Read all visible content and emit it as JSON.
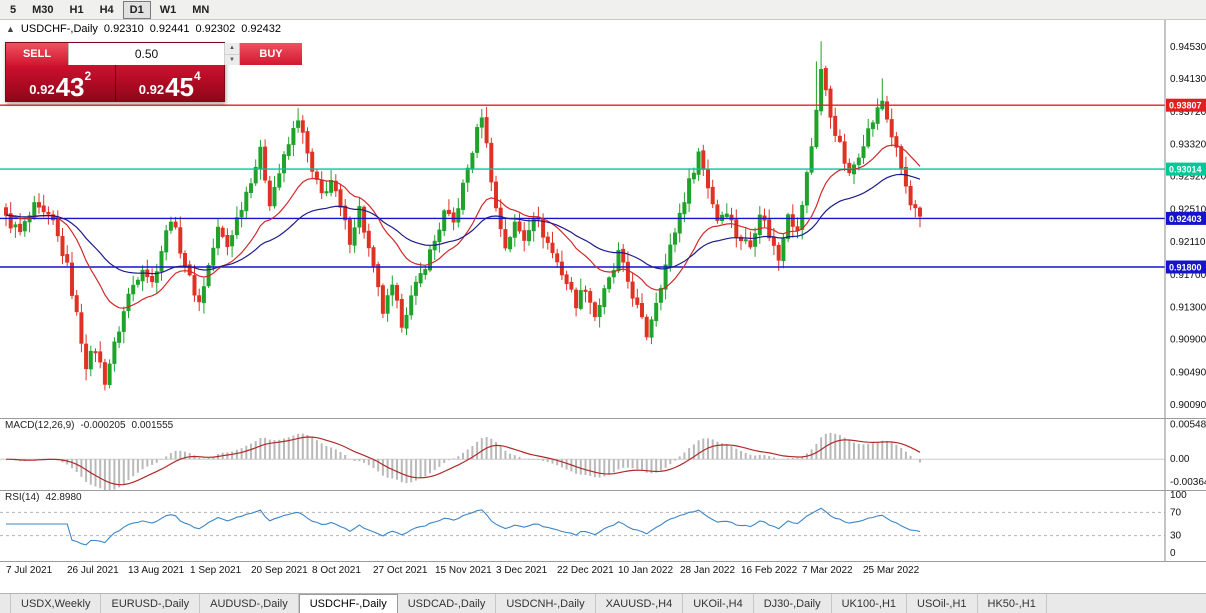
{
  "toolbar": {
    "timeframes": [
      "5",
      "M30",
      "H1",
      "H4",
      "D1",
      "W1",
      "MN"
    ],
    "active": "D1"
  },
  "chart_header": {
    "collapse_icon": "▲",
    "symbol": "USDCHF-,Daily",
    "open": "0.92310",
    "high": "0.92441",
    "low": "0.92302",
    "close": "0.92432"
  },
  "trade_panel": {
    "sell_label": "SELL",
    "buy_label": "BUY",
    "volume": "0.50",
    "volume_up_icon": "▲",
    "volume_down_icon": "▼",
    "sell_price_base": "0.92",
    "sell_price_pips": "43",
    "sell_price_point": "2",
    "buy_price_base": "0.92",
    "buy_price_pips": "45",
    "buy_price_point": "4"
  },
  "chart_data": {
    "type": "candlestick",
    "title": "USDCHF-,Daily",
    "candle_count": 195,
    "last_close": 0.92432,
    "price_range": [
      0.901,
      0.9474
    ],
    "up_color": "#1fa32b",
    "down_color": "#e03224",
    "ma_fast_color": "#d02a2a",
    "ma_slow_color": "#1c1c8c",
    "y_ticks": [
      0.9453,
      0.9413,
      0.9372,
      0.9332,
      0.9292,
      0.9251,
      0.9211,
      0.917,
      0.913,
      0.909,
      0.9049,
      0.9009
    ],
    "hlines": [
      {
        "price": 0.93807,
        "color": "#e02020",
        "label": "0.93807"
      },
      {
        "price": 0.93014,
        "color": "#00c896",
        "label": "0.93014"
      },
      {
        "price": 0.92403,
        "color": "#1414cc",
        "label": "0.92403"
      },
      {
        "price": 0.918,
        "color": "#1414cc",
        "label": "0.91800"
      }
    ],
    "x_labels": [
      {
        "i": 0,
        "label": "7 Jul 2021"
      },
      {
        "i": 13,
        "label": "26 Jul 2021"
      },
      {
        "i": 26,
        "label": "13 Aug 2021"
      },
      {
        "i": 39,
        "label": "1 Sep 2021"
      },
      {
        "i": 52,
        "label": "20 Sep 2021"
      },
      {
        "i": 65,
        "label": "8 Oct 2021"
      },
      {
        "i": 78,
        "label": "27 Oct 2021"
      },
      {
        "i": 91,
        "label": "15 Nov 2021"
      },
      {
        "i": 104,
        "label": "3 Dec 2021"
      },
      {
        "i": 117,
        "label": "22 Dec 2021"
      },
      {
        "i": 130,
        "label": "10 Jan 2022"
      },
      {
        "i": 143,
        "label": "28 Jan 2022"
      },
      {
        "i": 156,
        "label": "16 Feb 2022"
      },
      {
        "i": 169,
        "label": "7 Mar 2022"
      },
      {
        "i": 182,
        "label": "25 Mar 2022"
      }
    ],
    "close_waypoints": [
      [
        0,
        0.924
      ],
      [
        3,
        0.9222
      ],
      [
        6,
        0.9253
      ],
      [
        10,
        0.9235
      ],
      [
        13,
        0.918
      ],
      [
        17,
        0.906
      ],
      [
        19,
        0.9078
      ],
      [
        21,
        0.904
      ],
      [
        26,
        0.9145
      ],
      [
        29,
        0.9182
      ],
      [
        31,
        0.916
      ],
      [
        35,
        0.9242
      ],
      [
        39,
        0.9165
      ],
      [
        41,
        0.9136
      ],
      [
        45,
        0.9226
      ],
      [
        47,
        0.9206
      ],
      [
        52,
        0.929
      ],
      [
        54,
        0.9322
      ],
      [
        56,
        0.9262
      ],
      [
        62,
        0.9366
      ],
      [
        65,
        0.9296
      ],
      [
        67,
        0.927
      ],
      [
        69,
        0.9287
      ],
      [
        73,
        0.9215
      ],
      [
        75,
        0.9252
      ],
      [
        80,
        0.9125
      ],
      [
        82,
        0.9152
      ],
      [
        84,
        0.9112
      ],
      [
        91,
        0.9212
      ],
      [
        93,
        0.9246
      ],
      [
        95,
        0.9234
      ],
      [
        101,
        0.937
      ],
      [
        104,
        0.9252
      ],
      [
        106,
        0.9206
      ],
      [
        108,
        0.9232
      ],
      [
        110,
        0.9216
      ],
      [
        112,
        0.9246
      ],
      [
        117,
        0.9186
      ],
      [
        121,
        0.9136
      ],
      [
        123,
        0.9156
      ],
      [
        125,
        0.912
      ],
      [
        129,
        0.9176
      ],
      [
        130,
        0.9196
      ],
      [
        136,
        0.9096
      ],
      [
        143,
        0.9246
      ],
      [
        147,
        0.9322
      ],
      [
        151,
        0.924
      ],
      [
        153,
        0.9252
      ],
      [
        155,
        0.922
      ],
      [
        158,
        0.9206
      ],
      [
        160,
        0.925
      ],
      [
        164,
        0.919
      ],
      [
        166,
        0.925
      ],
      [
        168,
        0.9222
      ],
      [
        171,
        0.933
      ],
      [
        173,
        0.9425
      ],
      [
        175,
        0.9368
      ],
      [
        177,
        0.933
      ],
      [
        179,
        0.9292
      ],
      [
        182,
        0.9336
      ],
      [
        186,
        0.9386
      ],
      [
        190,
        0.9302
      ],
      [
        192,
        0.9256
      ],
      [
        194,
        0.92432
      ]
    ],
    "extremes": [
      {
        "i": 21,
        "low": 0.9031
      },
      {
        "i": 62,
        "high": 0.9377
      },
      {
        "i": 101,
        "high": 0.9376
      },
      {
        "i": 136,
        "low": 0.909
      },
      {
        "i": 172,
        "high": 0.9435
      },
      {
        "i": 173,
        "high": 0.946
      },
      {
        "i": 186,
        "high": 0.9414
      }
    ],
    "indicators": [
      {
        "name": "MACD",
        "label": "MACD(12,26,9)",
        "value_main": "-0.000205",
        "value_signal": "0.001555",
        "params": {
          "fast": 12,
          "slow": 26,
          "signal": 9
        },
        "range": [
          -0.0041,
          0.0059
        ],
        "y_ticks": [
          {
            "value": 0.00548,
            "label": "0.00548"
          },
          {
            "value": 0,
            "label": "0.00"
          },
          {
            "value": -0.00364,
            "label": "-0.00364"
          }
        ],
        "histogram_color": "#b9b9b9",
        "signal_color": "#b02a2a"
      },
      {
        "name": "RSI",
        "label": "RSI(14)",
        "value": "42.8980",
        "period": 14,
        "levels": [
          100,
          70,
          30,
          0
        ],
        "dashed_levels": [
          70,
          30
        ],
        "line_color": "#3d85c6"
      }
    ]
  },
  "bottom_tabs": {
    "tabs": [
      "USDX,Weekly",
      "EURUSD-,Daily",
      "AUDUSD-,Daily",
      "USDCHF-,Daily",
      "USDCAD-,Daily",
      "USDCNH-,Daily",
      "XAUUSD-,H4",
      "UKOil-,H4",
      "DJ30-,Daily",
      "UK100-,H1",
      "USOil-,H1",
      "HK50-,H1"
    ],
    "active": "USDCHF-,Daily"
  }
}
